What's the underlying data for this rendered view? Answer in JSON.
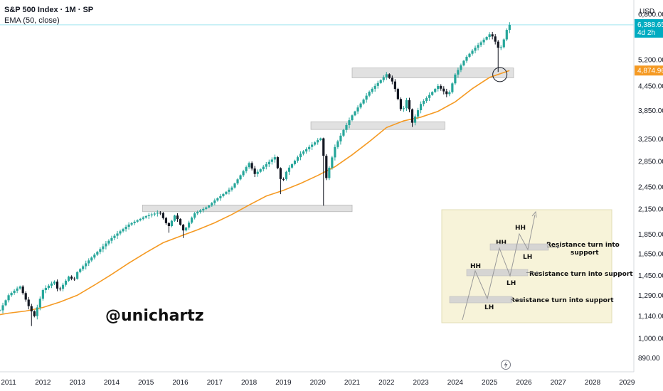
{
  "header": {
    "title": "S&P 500 Index · 1M · SP",
    "indicator": "EMA (50, close)"
  },
  "currency": "USD",
  "watermark": "@unichartz",
  "price_tags": {
    "last_value": "6,388.65",
    "countdown": "4d 2h",
    "ema_value": "4,874.96"
  },
  "legend": {
    "resistance_label": "Resistance turn into support",
    "hh": "HH",
    "lh": "LH"
  },
  "colors": {
    "up": "#26a69a",
    "down": "#131722",
    "ema": "#f59a23",
    "zone_fill": "#d9d9d9",
    "last_price_line": "#00bcd4",
    "legend_bg": "#f7f3d9"
  },
  "chart_data": {
    "type": "candlestick",
    "title": "S&P 500 Index · 1M · SP",
    "indicator": "EMA (50, close)",
    "y_axis": {
      "scale": "log",
      "unit": "USD",
      "tick_labels": [
        "6,800.00",
        "5,200.00",
        "4,450.00",
        "3,850.00",
        "3,250.00",
        "2,850.00",
        "2,450.00",
        "2,150.00",
        "1,850.00",
        "1,650.00",
        "1,450.00",
        "1,290.00",
        "1,140.00",
        "1,000.00",
        "890.00"
      ],
      "ticks": [
        6800,
        5200,
        4450,
        3850,
        3250,
        2850,
        2450,
        2150,
        1850,
        1650,
        1450,
        1290,
        1140,
        1000,
        890
      ],
      "range": [
        820,
        7400
      ]
    },
    "x_axis": {
      "tick_labels": [
        "2011",
        "2012",
        "2013",
        "2014",
        "2015",
        "2016",
        "2017",
        "2018",
        "2019",
        "2020",
        "2021",
        "2022",
        "2023",
        "2024",
        "2025",
        "2026",
        "2027",
        "2028",
        "2029"
      ],
      "range": [
        2010.75,
        2029.2
      ]
    },
    "price_series": {
      "name": "S&P 500 Index",
      "points": [
        [
          2010.75,
          1180
        ],
        [
          2011.0,
          1290
        ],
        [
          2011.33,
          1360
        ],
        [
          2011.6,
          1200
        ],
        [
          2011.75,
          1140
        ],
        [
          2012.0,
          1330
        ],
        [
          2012.33,
          1400
        ],
        [
          2012.45,
          1320
        ],
        [
          2012.75,
          1440
        ],
        [
          2012.9,
          1410
        ],
        [
          2013.0,
          1480
        ],
        [
          2013.5,
          1640
        ],
        [
          2014.0,
          1810
        ],
        [
          2014.5,
          1960
        ],
        [
          2014.8,
          2020
        ],
        [
          2015.0,
          2060
        ],
        [
          2015.4,
          2110
        ],
        [
          2015.65,
          1930
        ],
        [
          2015.85,
          2080
        ],
        [
          2016.1,
          1880
        ],
        [
          2016.4,
          2090
        ],
        [
          2016.8,
          2180
        ],
        [
          2017.0,
          2260
        ],
        [
          2017.5,
          2440
        ],
        [
          2018.0,
          2820
        ],
        [
          2018.17,
          2640
        ],
        [
          2018.5,
          2800
        ],
        [
          2018.75,
          2920
        ],
        [
          2018.95,
          2500
        ],
        [
          2019.1,
          2700
        ],
        [
          2019.5,
          2980
        ],
        [
          2020.0,
          3230
        ],
        [
          2020.1,
          3270
        ],
        [
          2020.25,
          2580
        ],
        [
          2020.5,
          3100
        ],
        [
          2020.75,
          3430
        ],
        [
          2021.0,
          3740
        ],
        [
          2021.5,
          4300
        ],
        [
          2022.0,
          4770
        ],
        [
          2022.2,
          4530
        ],
        [
          2022.45,
          3790
        ],
        [
          2022.6,
          4130
        ],
        [
          2022.75,
          3580
        ],
        [
          2023.0,
          4000
        ],
        [
          2023.5,
          4450
        ],
        [
          2023.8,
          4200
        ],
        [
          2024.0,
          4760
        ],
        [
          2024.3,
          5250
        ],
        [
          2024.6,
          5600
        ],
        [
          2025.0,
          6040
        ],
        [
          2025.1,
          5950
        ],
        [
          2025.25,
          5580
        ],
        [
          2025.35,
          5600
        ],
        [
          2025.5,
          6200
        ],
        [
          2025.58,
          6388.65
        ]
      ]
    },
    "ema_series": {
      "name": "EMA (50, close)",
      "points": [
        [
          2010.75,
          1150
        ],
        [
          2011.0,
          1160
        ],
        [
          2011.5,
          1175
        ],
        [
          2012.0,
          1200
        ],
        [
          2012.5,
          1240
        ],
        [
          2013.0,
          1290
        ],
        [
          2013.5,
          1370
        ],
        [
          2014.0,
          1460
        ],
        [
          2014.5,
          1560
        ],
        [
          2015.0,
          1660
        ],
        [
          2015.5,
          1760
        ],
        [
          2016.0,
          1830
        ],
        [
          2016.5,
          1900
        ],
        [
          2017.0,
          1980
        ],
        [
          2017.5,
          2080
        ],
        [
          2018.0,
          2200
        ],
        [
          2018.5,
          2320
        ],
        [
          2019.0,
          2400
        ],
        [
          2019.5,
          2500
        ],
        [
          2020.0,
          2620
        ],
        [
          2020.5,
          2760
        ],
        [
          2021.0,
          2960
        ],
        [
          2021.5,
          3200
        ],
        [
          2022.0,
          3480
        ],
        [
          2022.5,
          3620
        ],
        [
          2023.0,
          3700
        ],
        [
          2023.5,
          3830
        ],
        [
          2024.0,
          4050
        ],
        [
          2024.5,
          4380
        ],
        [
          2025.0,
          4680
        ],
        [
          2025.58,
          4874.96
        ]
      ]
    },
    "last_value": 6388.65,
    "ema_last_value": 4874.96,
    "support_zones": [
      {
        "x0": 2014.9,
        "x1": 2021.0,
        "y0": 2115,
        "y1": 2200
      },
      {
        "x0": 2019.8,
        "x1": 2023.7,
        "y0": 3440,
        "y1": 3600
      },
      {
        "x0": 2021.0,
        "x1": 2025.7,
        "y0": 4670,
        "y1": 4950
      }
    ]
  }
}
